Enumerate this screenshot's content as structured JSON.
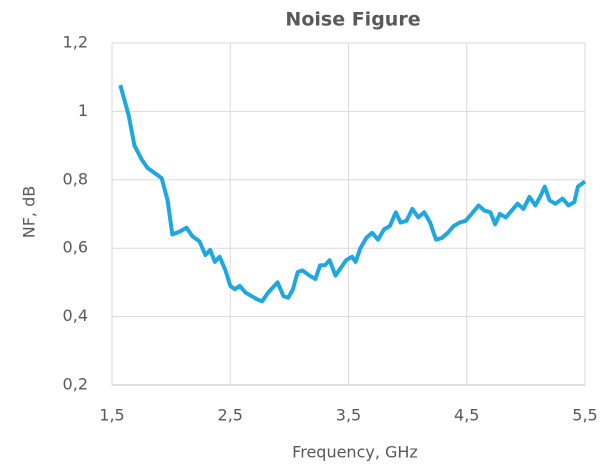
{
  "chart_data": {
    "type": "line",
    "title": "Noise Figure",
    "xlabel": "Frequency, GHz",
    "ylabel": "NF, dB",
    "x": [
      1.57,
      1.64,
      1.69,
      1.75,
      1.8,
      1.86,
      1.92,
      1.97,
      2.01,
      2.08,
      2.13,
      2.18,
      2.24,
      2.29,
      2.33,
      2.37,
      2.41,
      2.46,
      2.5,
      2.54,
      2.58,
      2.63,
      2.68,
      2.73,
      2.77,
      2.82,
      2.86,
      2.9,
      2.95,
      2.99,
      3.03,
      3.07,
      3.11,
      3.17,
      3.22,
      3.26,
      3.3,
      3.34,
      3.39,
      3.43,
      3.48,
      3.53,
      3.56,
      3.6,
      3.65,
      3.7,
      3.75,
      3.8,
      3.85,
      3.9,
      3.94,
      3.99,
      4.04,
      4.09,
      4.14,
      4.19,
      4.24,
      4.29,
      4.34,
      4.39,
      4.44,
      4.49,
      4.54,
      4.6,
      4.65,
      4.7,
      4.74,
      4.78,
      4.83,
      4.88,
      4.93,
      4.98,
      5.03,
      5.08,
      5.12,
      5.16,
      5.2,
      5.25,
      5.31,
      5.36,
      5.41,
      5.44,
      5.5
    ],
    "series": [
      {
        "name": "NF",
        "color": "#1ea7e1",
        "values": [
          1.077,
          0.99,
          0.9,
          0.86,
          0.835,
          0.82,
          0.805,
          0.74,
          0.64,
          0.65,
          0.66,
          0.635,
          0.62,
          0.58,
          0.595,
          0.56,
          0.575,
          0.535,
          0.49,
          0.48,
          0.49,
          0.47,
          0.46,
          0.45,
          0.445,
          0.47,
          0.485,
          0.5,
          0.46,
          0.455,
          0.48,
          0.53,
          0.535,
          0.52,
          0.51,
          0.55,
          0.55,
          0.565,
          0.52,
          0.54,
          0.565,
          0.575,
          0.56,
          0.6,
          0.63,
          0.645,
          0.625,
          0.655,
          0.665,
          0.705,
          0.675,
          0.68,
          0.715,
          0.69,
          0.705,
          0.675,
          0.625,
          0.63,
          0.645,
          0.665,
          0.675,
          0.68,
          0.7,
          0.725,
          0.71,
          0.705,
          0.67,
          0.7,
          0.69,
          0.71,
          0.73,
          0.715,
          0.75,
          0.725,
          0.75,
          0.78,
          0.74,
          0.73,
          0.745,
          0.725,
          0.735,
          0.78,
          0.795
        ]
      }
    ],
    "xlim": [
      1.5,
      5.5
    ],
    "ylim": [
      0.2,
      1.2
    ],
    "xticks": [
      {
        "value": 1.5,
        "label": "1,5"
      },
      {
        "value": 2.5,
        "label": "2,5"
      },
      {
        "value": 3.5,
        "label": "3,5"
      },
      {
        "value": 4.5,
        "label": "4,5"
      },
      {
        "value": 5.5,
        "label": "5,5"
      }
    ],
    "yticks": [
      {
        "value": 0.2,
        "label": "0,2"
      },
      {
        "value": 0.4,
        "label": "0,4"
      },
      {
        "value": 0.6,
        "label": "0,6"
      },
      {
        "value": 0.8,
        "label": "0,8"
      },
      1,
      {
        "value": 1.2,
        "label": "1,2"
      }
    ],
    "grid": true
  }
}
